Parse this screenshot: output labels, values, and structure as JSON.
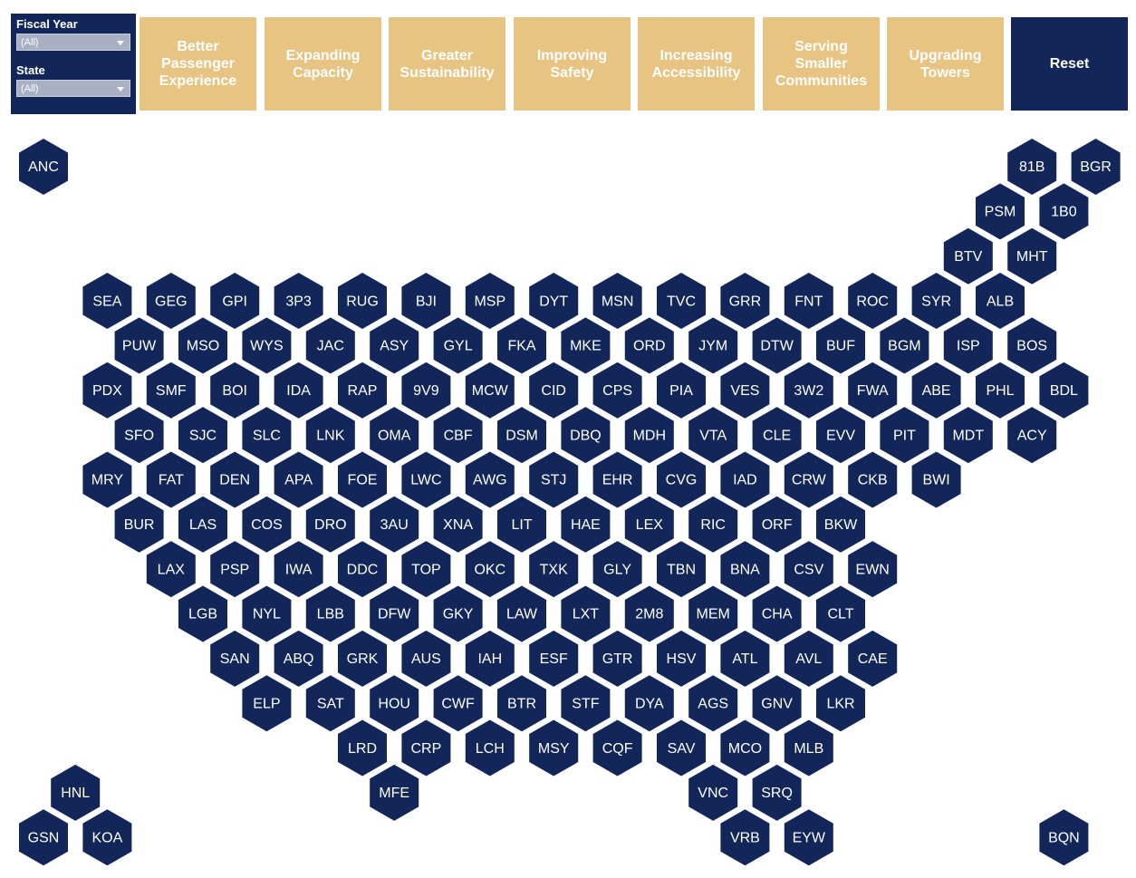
{
  "filters": [
    {
      "label": "Fiscal Year",
      "value": "(All)"
    },
    {
      "label": "State",
      "value": "(All)"
    }
  ],
  "buttons": [
    "Better Passenger Experience",
    "Expanding Capacity",
    "Greater Sustainability",
    "Improving Safety",
    "Increasing Accessibility",
    "Serving Smaller Communities",
    "Upgrading Towers",
    "Reset"
  ],
  "hexes": [
    "ANC",
    "81B",
    "BGR",
    "PSM",
    "1B0",
    "BTV",
    "MHT",
    "SEA",
    "GEG",
    "GPI",
    "3P3",
    "RUG",
    "BJI",
    "MSP",
    "DYT",
    "MSN",
    "TVC",
    "GRR",
    "FNT",
    "ROC",
    "SYR",
    "ALB",
    "PUW",
    "MSO",
    "WYS",
    "JAC",
    "ASY",
    "GYL",
    "FKA",
    "MKE",
    "ORD",
    "JYM",
    "DTW",
    "BUF",
    "BGM",
    "ISP",
    "BOS",
    "PDX",
    "SMF",
    "BOI",
    "IDA",
    "RAP",
    "9V9",
    "MCW",
    "CID",
    "CPS",
    "PIA",
    "VES",
    "3W2",
    "FWA",
    "ABE",
    "PHL",
    "BDL",
    "SFO",
    "SJC",
    "SLC",
    "LNK",
    "OMA",
    "CBF",
    "DSM",
    "DBQ",
    "MDH",
    "VTA",
    "CLE",
    "EVV",
    "PIT",
    "MDT",
    "ACY",
    "MRY",
    "FAT",
    "DEN",
    "APA",
    "FOE",
    "LWC",
    "AWG",
    "STJ",
    "EHR",
    "CVG",
    "IAD",
    "CRW",
    "CKB",
    "BWI",
    "BUR",
    "LAS",
    "COS",
    "DRO",
    "3AU",
    "XNA",
    "LIT",
    "HAE",
    "LEX",
    "RIC",
    "ORF",
    "BKW",
    "LAX",
    "PSP",
    "IWA",
    "DDC",
    "TOP",
    "OKC",
    "TXK",
    "GLY",
    "TBN",
    "BNA",
    "CSV",
    "EWN",
    "LGB",
    "NYL",
    "LBB",
    "DFW",
    "GKY",
    "LAW",
    "LXT",
    "2M8",
    "MEM",
    "CHA",
    "CLT",
    "SAN",
    "ABQ",
    "GRK",
    "AUS",
    "IAH",
    "ESF",
    "GTR",
    "HSV",
    "ATL",
    "AVL",
    "CAE",
    "ELP",
    "SAT",
    "HOU",
    "CWF",
    "BTR",
    "STF",
    "DYA",
    "AGS",
    "GNV",
    "LKR",
    "LRD",
    "CRP",
    "LCH",
    "MSY",
    "CQF",
    "SAV",
    "MCO",
    "MLB",
    "HNL",
    "MFE",
    "VNC",
    "SRQ",
    "GSN",
    "KOA",
    "VRB",
    "EYW",
    "BQN"
  ]
}
